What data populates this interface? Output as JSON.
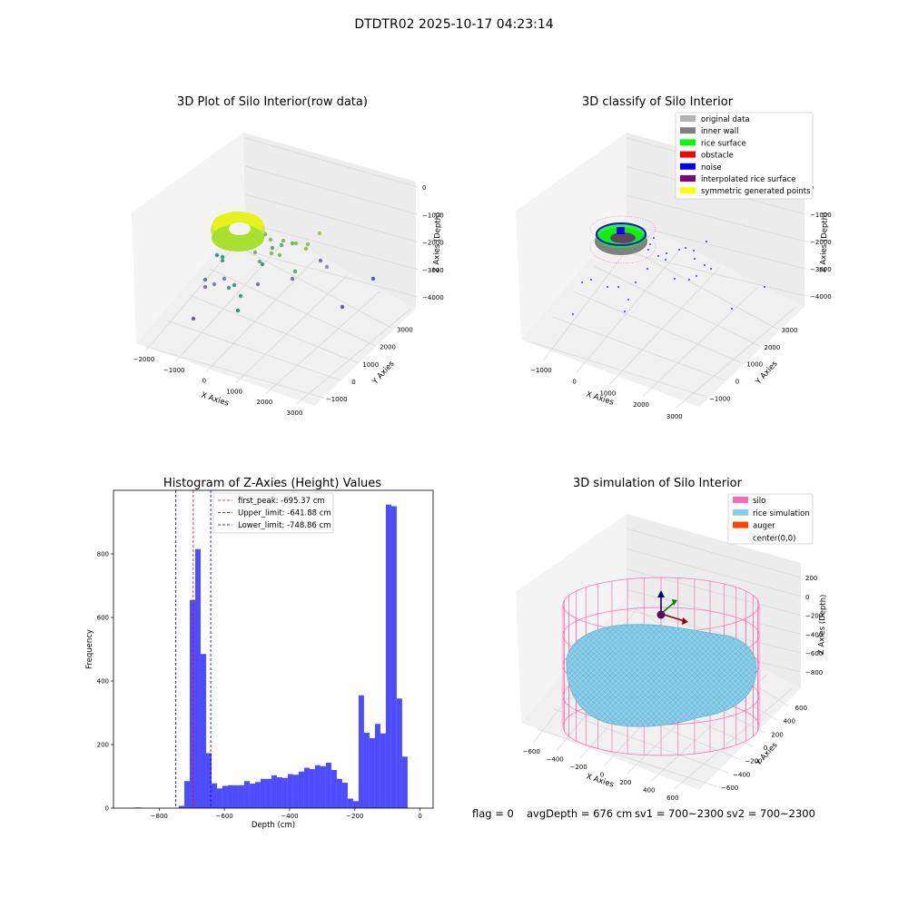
{
  "suptitle": "DTDTR02 2025-10-17 04:23:14",
  "footer": {
    "flag": "flag = 0",
    "avg_depth": "avgDepth = 676 cm",
    "sv1": "sv1 = 700~2300",
    "sv2": "sv2 = 700~2300"
  },
  "colors": {
    "original": "#b3b3b3",
    "inner_wall": "#808080",
    "rice_surface": "#00ff00",
    "obstacle": "#ff0000",
    "noise": "#0000ff",
    "interpolated": "#800080",
    "symmetric": "#ffff00",
    "silo": "#ff69b4",
    "rice_sim": "#87ceeb",
    "auger": "#ff4500",
    "hist_bar": "#4d4dff",
    "peak_line": "#ff0000",
    "limit_line": "#0000cc"
  },
  "chart_data": [
    {
      "type": "scatter",
      "title": "3D Plot of Silo Interior(row data)",
      "xlabel": "X Axies",
      "ylabel": "Y Axies",
      "zlabel": "Z Axies (Depth)",
      "x_ticks": [
        "−2000",
        "−1000",
        "0",
        "1000",
        "2000",
        "3000"
      ],
      "y_ticks": [
        "−1000",
        "0",
        "1000",
        "2000",
        "3000"
      ],
      "z_ticks": [
        "0",
        "−1000",
        "−2000",
        "−3000",
        "−4000"
      ],
      "xlim": [
        -2000,
        3000
      ],
      "ylim": [
        -1000,
        3000
      ],
      "zlim": [
        -4500,
        0
      ]
    },
    {
      "type": "scatter",
      "title": "3D classify of Silo Interior",
      "xlabel": "X Axies",
      "ylabel": "Y Axies",
      "zlabel": "Z Axies (Depth)",
      "x_ticks": [
        "−1000",
        "0",
        "1000",
        "2000",
        "3000"
      ],
      "y_ticks": [
        "−1000",
        "0",
        "1000",
        "2000",
        "3000"
      ],
      "z_ticks": [
        "0",
        "−1000",
        "−2000",
        "−3000",
        "−4000"
      ],
      "xlim": [
        -1500,
        3000
      ],
      "ylim": [
        -1000,
        3000
      ],
      "zlim": [
        -4500,
        0
      ],
      "legend": [
        "original data",
        "inner wall",
        "rice surface",
        "obstacle",
        "noise",
        "interpolated rice surface",
        "symmetric generated points"
      ],
      "legend_loc": "upper right"
    },
    {
      "type": "bar",
      "title": "Histogram of Z-Axies (Height) Values",
      "xlabel": "Depth (cm)",
      "ylabel": "Frequency",
      "xlim": [
        -940,
        40
      ],
      "ylim": [
        0,
        1000
      ],
      "x_ticks": [
        -800,
        -600,
        -400,
        -200,
        0
      ],
      "y_ticks": [
        0,
        200,
        400,
        600,
        800
      ],
      "bin_start": -940,
      "bin_width": 16.7,
      "values": [
        0,
        0,
        0,
        1,
        2,
        0,
        0,
        0,
        0,
        0,
        0,
        0,
        7,
        85,
        655,
        815,
        485,
        173,
        78,
        62,
        70,
        72,
        72,
        72,
        85,
        77,
        82,
        92,
        92,
        103,
        97,
        95,
        107,
        105,
        115,
        127,
        123,
        135,
        132,
        143,
        120,
        92,
        80,
        30,
        22,
        355,
        237,
        220,
        265,
        235,
        955,
        950,
        345,
        162
      ],
      "lines": [
        {
          "label": "first_peak: -695.37 cm",
          "x": -695.37,
          "style": "red"
        },
        {
          "label": "Upper_limit: -641.88 cm",
          "x": -641.88,
          "style": "blue"
        },
        {
          "label": "Lower_limit: -748.86 cm",
          "x": -748.86,
          "style": "blue"
        }
      ]
    },
    {
      "type": "scatter",
      "title": "3D simulation of Silo Interior",
      "xlabel": "X Axies",
      "ylabel": "Y Axies",
      "zlabel": "Z Axies (Depth)",
      "x_ticks": [
        "−600",
        "−400",
        "−200",
        "0",
        "200",
        "400",
        "600"
      ],
      "y_ticks": [
        "−600",
        "−400",
        "−200",
        "0",
        "200",
        "400",
        "600"
      ],
      "z_ticks": [
        "200",
        "0",
        "−200",
        "−400",
        "−600",
        "−800"
      ],
      "xlim": [
        -700,
        700
      ],
      "ylim": [
        -700,
        700
      ],
      "zlim": [
        -950,
        300
      ],
      "legend": [
        "silo",
        "rice simulation",
        "auger",
        "center(0,0)"
      ],
      "legend_loc": "upper right"
    }
  ]
}
